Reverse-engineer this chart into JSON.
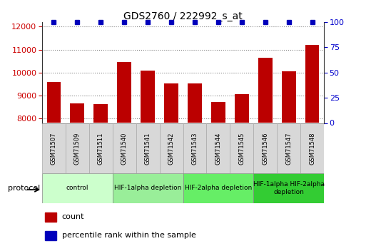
{
  "title": "GDS2760 / 222992_s_at",
  "samples": [
    "GSM71507",
    "GSM71509",
    "GSM71511",
    "GSM71540",
    "GSM71541",
    "GSM71542",
    "GSM71543",
    "GSM71544",
    "GSM71545",
    "GSM71546",
    "GSM71547",
    "GSM71548"
  ],
  "counts": [
    9600,
    8650,
    8620,
    10450,
    10100,
    9530,
    9540,
    8720,
    9050,
    10650,
    10050,
    11200
  ],
  "percentile_ranks": [
    100,
    100,
    100,
    100,
    100,
    100,
    100,
    100,
    100,
    100,
    100,
    100
  ],
  "bar_color": "#bb0000",
  "dot_color": "#0000bb",
  "ylim_left": [
    7800,
    12200
  ],
  "ylim_right": [
    0,
    100
  ],
  "yticks_left": [
    8000,
    9000,
    10000,
    11000,
    12000
  ],
  "yticks_right": [
    0,
    25,
    50,
    75,
    100
  ],
  "grid_color": "#888888",
  "bg_color": "#ffffff",
  "protocol_groups": [
    {
      "label": "control",
      "start": 0,
      "end": 2,
      "color": "#ccffcc"
    },
    {
      "label": "HIF-1alpha depletion",
      "start": 3,
      "end": 5,
      "color": "#99ee99"
    },
    {
      "label": "HIF-2alpha depletion",
      "start": 6,
      "end": 8,
      "color": "#66ee66"
    },
    {
      "label": "HIF-1alpha HIF-2alpha\ndepletion",
      "start": 9,
      "end": 11,
      "color": "#33cc33"
    }
  ],
  "protocol_label": "protocol",
  "legend_count_label": "count",
  "legend_pct_label": "percentile rank within the sample",
  "tick_label_color_left": "#cc0000",
  "tick_label_color_right": "#0000cc",
  "bar_width": 0.6,
  "sample_box_color": "#d8d8d8",
  "sample_box_edge": "#aaaaaa"
}
